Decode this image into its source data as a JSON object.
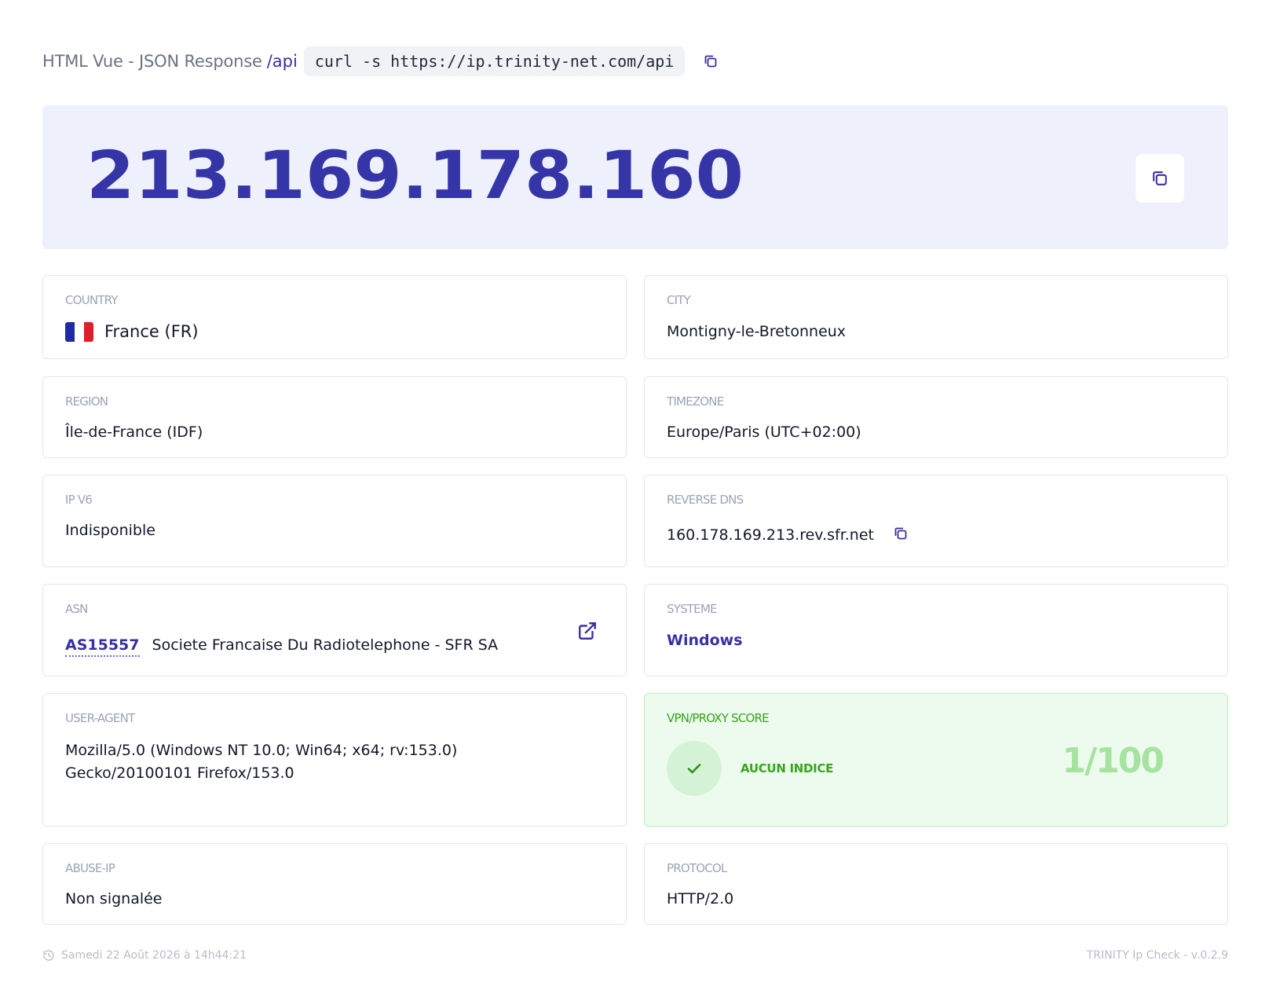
{
  "header": {
    "mode_label": "HTML Vue - JSON Response",
    "api_path": "/api",
    "curl_command": "curl -s https://ip.trinity-net.com/api",
    "copy_icon": "copy-icon"
  },
  "hero": {
    "ip_address": "213.169.178.160",
    "copy_icon": "copy-icon"
  },
  "country": {
    "label": "COUNTRY",
    "value": "France (FR)",
    "flag_colors": [
      "#1f2aa8",
      "#ffffff",
      "#e11d2a"
    ]
  },
  "city": {
    "label": "CITY",
    "value": "Montigny-le-Bretonneux"
  },
  "region": {
    "label": "REGION",
    "value": "Île-de-France (IDF)"
  },
  "timezone": {
    "label": "TIMEZONE",
    "value": "Europe/Paris (UTC+02:00)"
  },
  "ipv6": {
    "label": "IP V6",
    "value": "Indisponible"
  },
  "reverse_dns": {
    "label": "REVERSE DNS",
    "value": "160.178.169.213.rev.sfr.net",
    "copy_icon": "copy-icon"
  },
  "asn": {
    "label": "ASN",
    "number": "AS15557",
    "name": "Societe Francaise Du Radiotelephone - SFR SA",
    "link_icon": "external-link-icon"
  },
  "systeme": {
    "label": "SYSTEME",
    "value": "Windows"
  },
  "user_agent": {
    "label": "USER-AGENT",
    "value": "Mozilla/5.0 (Windows NT 10.0; Win64; x64; rv:153.0) Gecko/20100101 Firefox/153.0"
  },
  "vpn": {
    "label": "VPN/PROXY SCORE",
    "verdict": "AUCUN INDICE",
    "score": "1/100",
    "icon": "check-icon"
  },
  "abuse_ip": {
    "label": "ABUSE-IP",
    "value": "Non signalée"
  },
  "protocol": {
    "label": "PROTOCOL",
    "value": "HTTP/2.0"
  },
  "footer": {
    "timestamp": "Samedi 22 Août 2026 à 14h44:21",
    "history_icon": "history-icon",
    "version": "TRINITY Ip Check - v.0.2.9"
  },
  "colors": {
    "accent": "#3730a3",
    "ip_text": "#3535a8",
    "hero_bg": "#eef0fc",
    "vpn_bg": "#ecfbee",
    "vpn_text": "#39a51c"
  }
}
